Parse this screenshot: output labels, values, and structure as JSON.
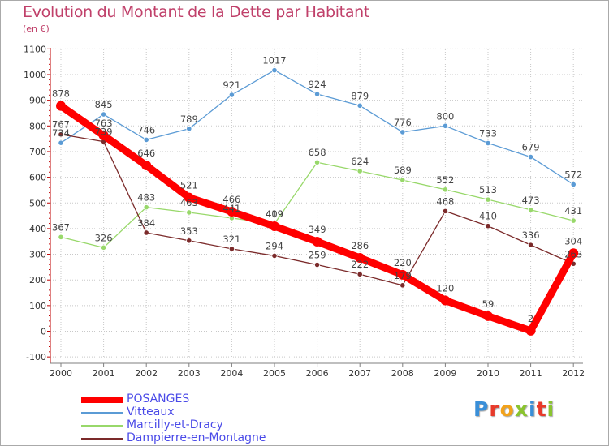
{
  "title": "Evolution du Montant de la Dette par Habitant",
  "unit_label": "(en €)",
  "logo": {
    "text": "Proxiti",
    "colors": [
      "#3a8fd8",
      "#e83a2a",
      "#f2a21a",
      "#8ac42e",
      "#3a8fd8",
      "#e83a2a",
      "#8ac42e"
    ]
  },
  "chart_data": {
    "type": "line",
    "title": "Evolution du Montant de la Dette par Habitant",
    "ylabel": "(en €)",
    "xlabel": "",
    "ylim": [
      -100,
      1100
    ],
    "yticks": [
      -100,
      0,
      100,
      200,
      300,
      400,
      500,
      600,
      700,
      800,
      900,
      1000,
      1100
    ],
    "x": [
      "2000",
      "2001",
      "2002",
      "2003",
      "2004",
      "2005",
      "2006",
      "2007",
      "2008",
      "2009",
      "2010",
      "2011",
      "2012"
    ],
    "grid": true,
    "legend": "bottom-left",
    "series": [
      {
        "name": "POSANGES",
        "color": "#ff0000",
        "values": [
          878,
          763,
          646,
          521,
          466,
          409,
          349,
          286,
          220,
          120,
          59,
          2,
          304
        ]
      },
      {
        "name": "Vitteaux",
        "color": "#5b9bd5",
        "values": [
          734,
          845,
          746,
          789,
          921,
          1017,
          924,
          879,
          776,
          800,
          733,
          679,
          572
        ]
      },
      {
        "name": "Marcilly-et-Dracy",
        "color": "#98d86a",
        "values": [
          367,
          326,
          483,
          463,
          441,
          419,
          658,
          624,
          589,
          552,
          513,
          473,
          431
        ]
      },
      {
        "name": "Dampierre-en-Montagne",
        "color": "#7b2a2a",
        "values": [
          767,
          739,
          384,
          353,
          321,
          294,
          259,
          222,
          179,
          468,
          410,
          336,
          263
        ]
      }
    ]
  }
}
